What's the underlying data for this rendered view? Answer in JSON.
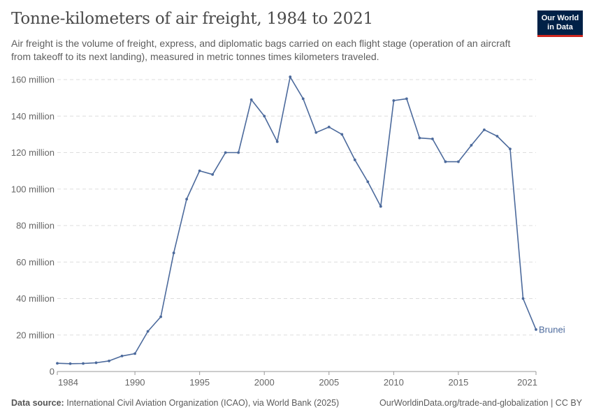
{
  "header": {
    "title": "Tonne-kilometers of air freight, 1984 to 2021",
    "subtitle": "Air freight is the volume of freight, express, and diplomatic bags carried on each flight stage (operation of an aircraft from takeoff to its next landing), measured in metric tonnes times kilometers traveled.",
    "logo_line1": "Our World",
    "logo_line2": "in Data"
  },
  "footer": {
    "source_label": "Data source:",
    "source_text": "International Civil Aviation Organization (ICAO), via World Bank (2025)",
    "url_text": "OurWorldinData.org/trade-and-globalization | CC BY"
  },
  "colors": {
    "series": "#4c6a9c",
    "grid": "#dddddd",
    "axis": "#999999"
  },
  "chart_data": {
    "type": "line",
    "title": "Tonne-kilometers of air freight, 1984 to 2021",
    "xlabel": "",
    "ylabel": "",
    "xlim": [
      1984,
      2021
    ],
    "ylim": [
      0,
      160000000
    ],
    "grid": true,
    "legend": "line-end",
    "x_ticks": [
      1984,
      1990,
      1995,
      2000,
      2005,
      2010,
      2015,
      2021
    ],
    "y_ticks": [
      {
        "value": 0,
        "label": "0"
      },
      {
        "value": 20000000,
        "label": "20 million"
      },
      {
        "value": 40000000,
        "label": "40 million"
      },
      {
        "value": 60000000,
        "label": "60 million"
      },
      {
        "value": 80000000,
        "label": "80 million"
      },
      {
        "value": 100000000,
        "label": "100 million"
      },
      {
        "value": 120000000,
        "label": "120 million"
      },
      {
        "value": 140000000,
        "label": "140 million"
      },
      {
        "value": 160000000,
        "label": "160 million"
      }
    ],
    "series": [
      {
        "name": "Brunei",
        "x": [
          1984,
          1985,
          1986,
          1987,
          1988,
          1989,
          1990,
          1991,
          1992,
          1993,
          1994,
          1995,
          1996,
          1997,
          1998,
          1999,
          2000,
          2001,
          2002,
          2003,
          2004,
          2005,
          2006,
          2007,
          2008,
          2009,
          2010,
          2011,
          2012,
          2013,
          2014,
          2015,
          2016,
          2017,
          2018,
          2019,
          2020,
          2021
        ],
        "values": [
          4500000,
          4300000,
          4400000,
          4800000,
          5800000,
          8500000,
          9800000,
          22000000,
          30000000,
          65000000,
          94500000,
          110000000,
          108000000,
          120000000,
          120000000,
          149000000,
          140000000,
          126000000,
          161500000,
          149500000,
          131000000,
          134000000,
          130000000,
          116000000,
          104000000,
          90500000,
          148500000,
          149500000,
          128000000,
          127500000,
          115000000,
          115000000,
          124000000,
          132500000,
          129000000,
          122000000,
          40000000,
          23000000
        ]
      }
    ]
  }
}
